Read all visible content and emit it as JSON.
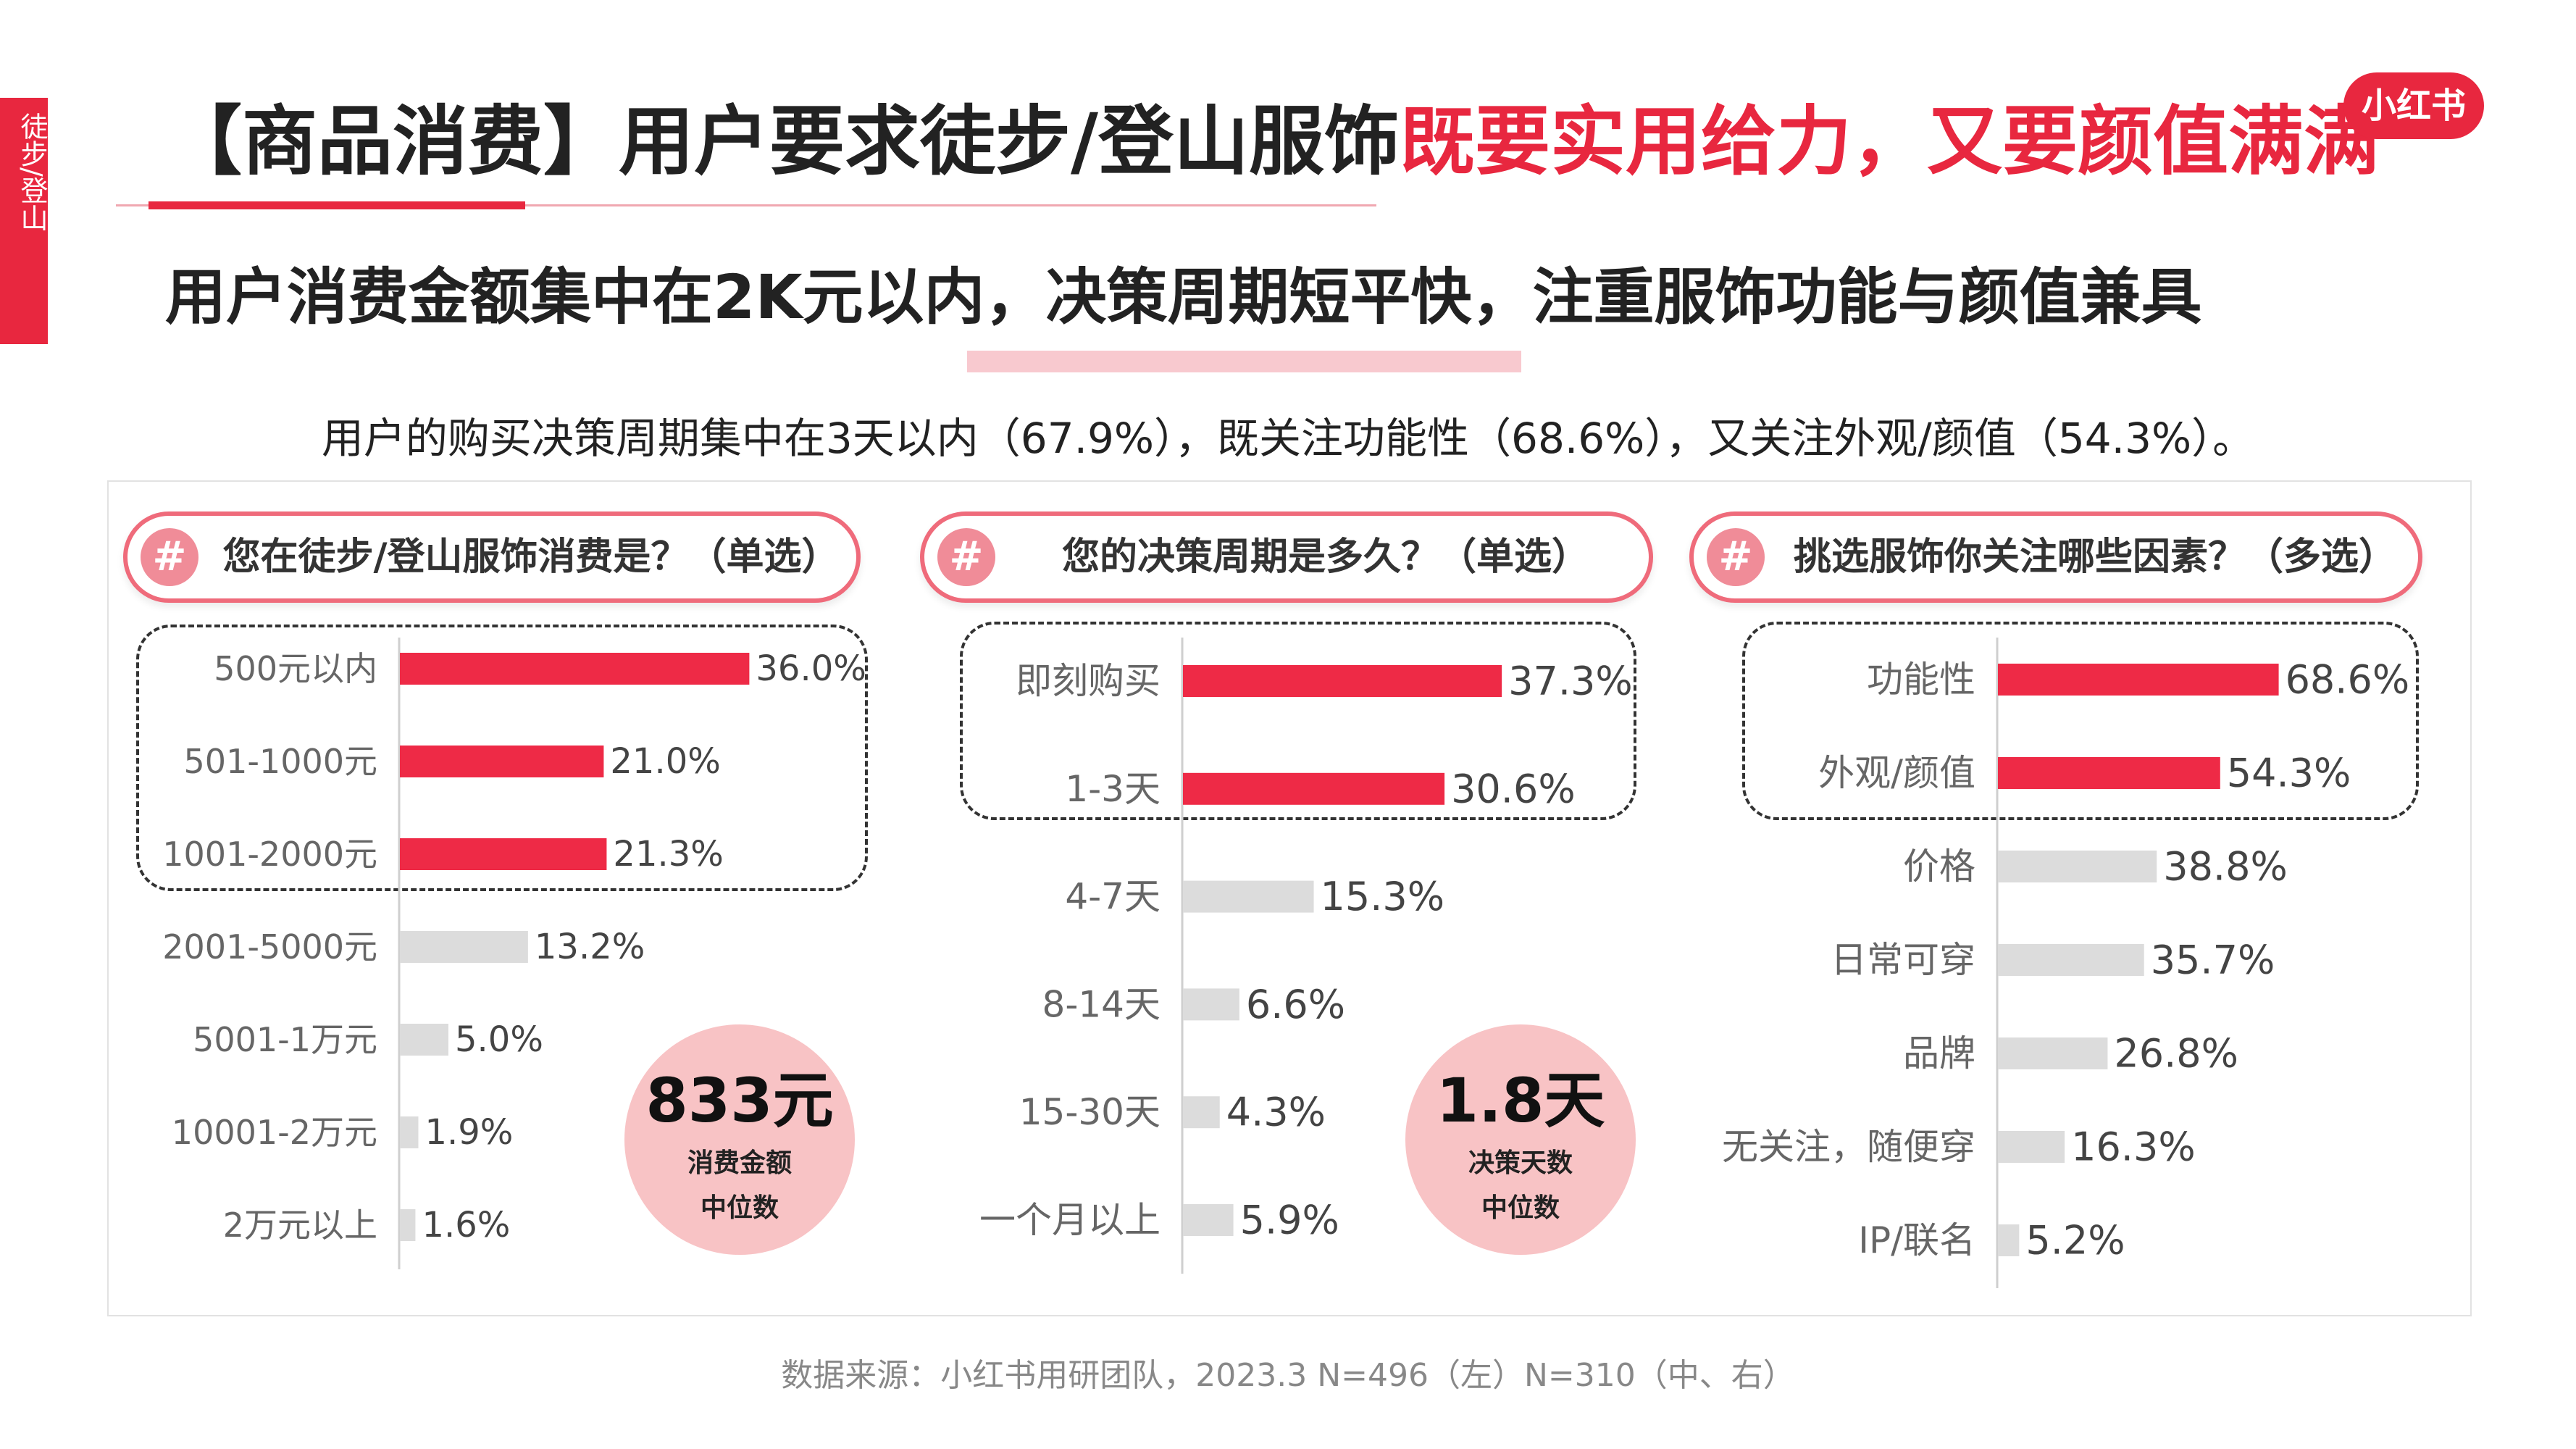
{
  "side_tab": "徒步/登山",
  "title": {
    "prefix": "【商品消费】用户要求徒步/登山服饰",
    "highlight": "既要实用给力，又要颜值满满"
  },
  "logo": "小红书",
  "subtitle": "用户消费金额集中在2K元以内，决策周期短平快，注重服饰功能与颜值兼具",
  "description": "用户的购买决策周期集中在3天以内（67.9%），既关注功能性（68.6%），又关注外观/颜值（54.3%）。",
  "questions": [
    {
      "icon": "#",
      "text": "您在徒步/登山服饰消费是？（单选）"
    },
    {
      "icon": "#",
      "text": "您的决策周期是多久？（单选）"
    },
    {
      "icon": "#",
      "text": "挑选服饰你关注哪些因素？（多选）"
    }
  ],
  "bubbles": [
    {
      "value": "833元",
      "line1": "消费金额",
      "line2": "中位数"
    },
    {
      "value": "1.8天",
      "line1": "决策天数",
      "line2": "中位数"
    }
  ],
  "source": "数据来源：小红书用研团队，2023.3 N=496（左）N=310（中、右）",
  "colors": {
    "accent": "#e8273f",
    "bar_highlight": "#ee2a46",
    "bar_normal": "#dcdcdc",
    "bubble": "#f8c3c5"
  },
  "chart_data": [
    {
      "type": "bar",
      "orientation": "horizontal",
      "title": "您在徒步/登山服饰消费是？（单选）",
      "categories": [
        "500元以内",
        "501-1000元",
        "1001-2000元",
        "2001-5000元",
        "5001-1万元",
        "10001-2万元",
        "2万元以上"
      ],
      "values": [
        36.0,
        21.0,
        21.3,
        13.2,
        5.0,
        1.9,
        1.6
      ],
      "labels": [
        "36.0%",
        "21.0%",
        "21.3%",
        "13.2%",
        "5.0%",
        "1.9%",
        "1.6%"
      ],
      "highlighted": [
        true,
        true,
        true,
        false,
        false,
        false,
        false
      ],
      "unit": "%"
    },
    {
      "type": "bar",
      "orientation": "horizontal",
      "title": "您的决策周期是多久？（单选）",
      "categories": [
        "即刻购买",
        "1-3天",
        "4-7天",
        "8-14天",
        "15-30天",
        "一个月以上"
      ],
      "values": [
        37.3,
        30.6,
        15.3,
        6.6,
        4.3,
        5.9
      ],
      "labels": [
        "37.3%",
        "30.6%",
        "15.3%",
        "6.6%",
        "4.3%",
        "5.9%"
      ],
      "highlighted": [
        true,
        true,
        false,
        false,
        false,
        false
      ],
      "unit": "%"
    },
    {
      "type": "bar",
      "orientation": "horizontal",
      "title": "挑选服饰你关注哪些因素？（多选）",
      "categories": [
        "功能性",
        "外观/颜值",
        "价格",
        "日常可穿",
        "品牌",
        "无关注，随便穿",
        "IP/联名"
      ],
      "values": [
        68.6,
        54.3,
        38.8,
        35.7,
        26.8,
        16.3,
        5.2
      ],
      "labels": [
        "68.6%",
        "54.3%",
        "38.8%",
        "35.7%",
        "26.8%",
        "16.3%",
        "5.2%"
      ],
      "highlighted": [
        true,
        true,
        false,
        false,
        false,
        false,
        false
      ],
      "unit": "%"
    }
  ]
}
